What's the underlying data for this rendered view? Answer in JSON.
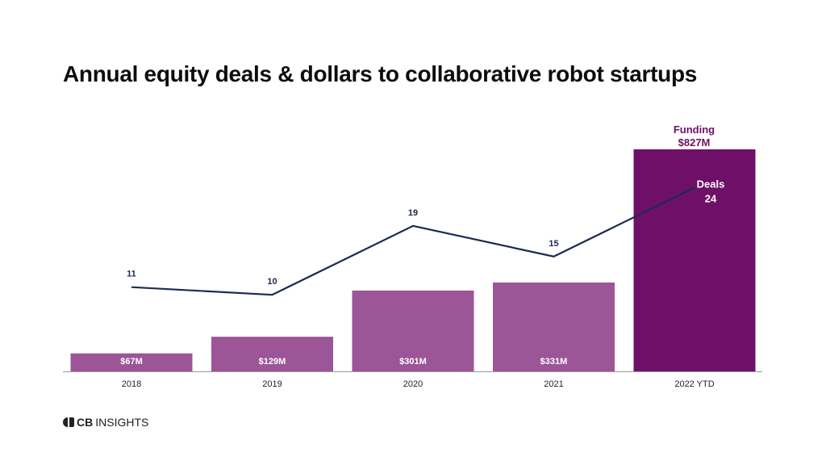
{
  "chart_data": {
    "type": "bar",
    "title": "Annual equity deals & dollars to collaborative robot startups",
    "categories": [
      "2018",
      "2019",
      "2020",
      "2021",
      "2022 YTD"
    ],
    "series": [
      {
        "name": "Funding",
        "type": "bar",
        "values": [
          67,
          129,
          301,
          331,
          827
        ],
        "labels": [
          "$67M",
          "$129M",
          "$301M",
          "$331M",
          "$827M"
        ],
        "color": "#9c5597",
        "highlight_color": "#6e1068"
      },
      {
        "name": "Deals",
        "type": "line",
        "values": [
          11,
          10,
          19,
          15,
          24
        ],
        "labels": [
          "11",
          "10",
          "19",
          "15",
          "24"
        ],
        "color": "#1c2a52"
      }
    ],
    "ylim_funding": [
      0,
      827
    ],
    "ylim_deals": [
      0,
      29
    ],
    "grid": false,
    "legend": "inline-labels"
  },
  "brand": {
    "logo_cb": "CB",
    "logo_rest": "INSIGHTS"
  },
  "colors": {
    "axis": "#999999",
    "tick_text": "#222222",
    "deal_label": "#1c2a52",
    "funding_label": "#6e1068"
  }
}
